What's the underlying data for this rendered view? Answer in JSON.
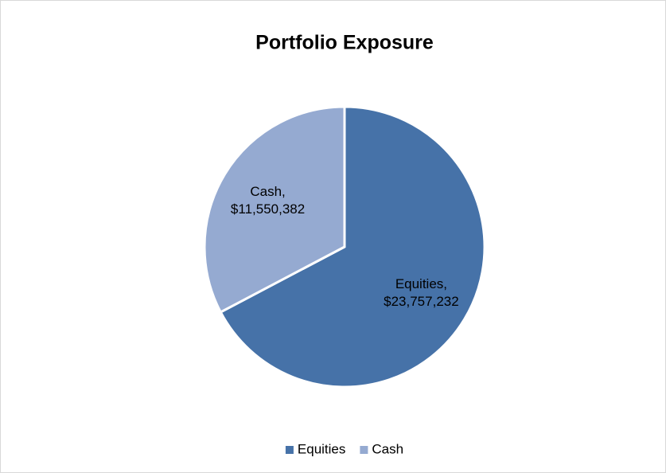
{
  "chart_data": {
    "type": "pie",
    "title": "Portfolio Exposure",
    "categories": [
      "Equities",
      "Cash"
    ],
    "values": [
      23757232,
      11550382
    ],
    "value_labels": [
      "Equities, $23,757,232",
      "Cash, $11,550,382"
    ],
    "colors": [
      "#4672a8",
      "#95aad1"
    ],
    "legend": "bottom"
  }
}
